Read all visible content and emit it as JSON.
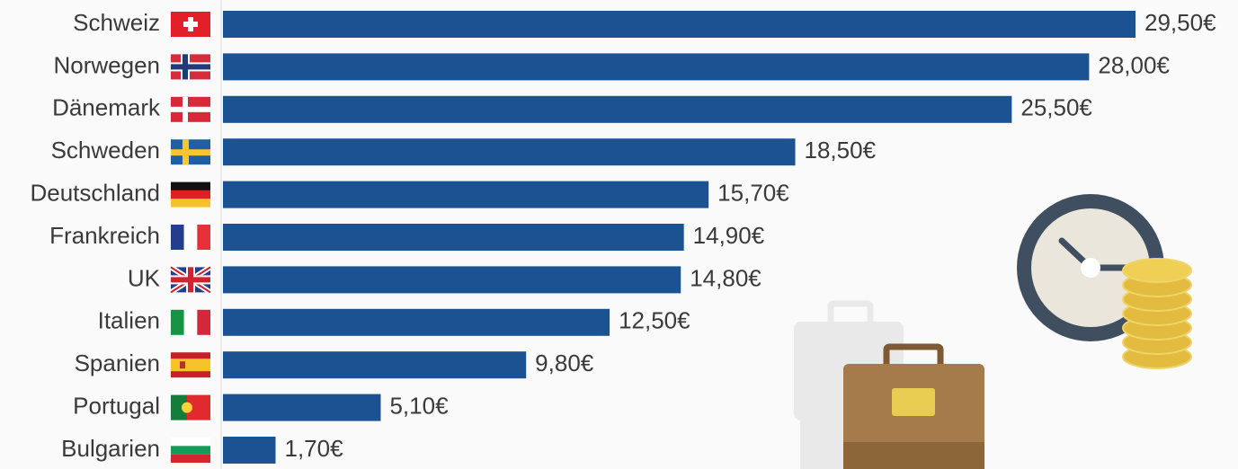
{
  "chart_data": {
    "type": "bar",
    "orientation": "horizontal",
    "color": "#1b5292",
    "categories": [
      "Schweiz",
      "Norwegen",
      "Dänemark",
      "Schweden",
      "Deutschland",
      "Frankreich",
      "UK",
      "Italien",
      "Spanien",
      "Portugal",
      "Bulgarien"
    ],
    "values": [
      29.5,
      28.0,
      25.5,
      18.5,
      15.7,
      14.9,
      14.8,
      12.5,
      9.8,
      5.1,
      1.7
    ],
    "value_labels": [
      "29,50€",
      "28,00€",
      "25,50€",
      "18,50€",
      "15,70€",
      "14,90€",
      "14,80€",
      "12,50€",
      "9,80€",
      "5,10€",
      "1,70€"
    ]
  }
}
